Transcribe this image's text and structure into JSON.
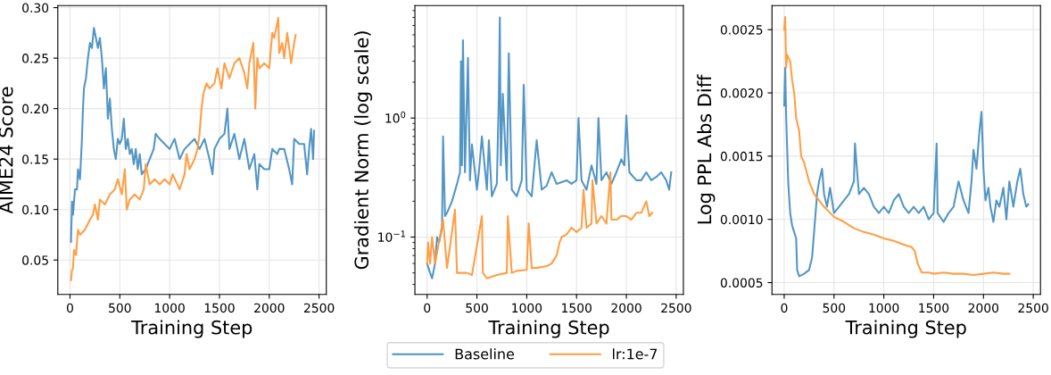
{
  "chart_data": [
    {
      "type": "line",
      "xlabel": "Training Step",
      "ylabel": "AIME24 Score",
      "legend": "bottom",
      "xlim": [
        -122.5,
        2572.5
      ],
      "xticks": [
        0,
        500,
        1000,
        1500,
        2000,
        2500
      ],
      "ylim": [
        0.016,
        0.302
      ],
      "yticks": [
        0.05,
        {
          "value": 0.1,
          "label": "0.10"
        },
        0.15,
        {
          "value": 0.2,
          "label": "0.20"
        },
        0.25,
        {
          "value": 0.3,
          "label": "0.30"
        }
      ],
      "grid": true,
      "series": [
        {
          "name": "Baseline",
          "color": "#4a90c2",
          "x": [
            10,
            20,
            30,
            50,
            70,
            80,
            100,
            120,
            130,
            140,
            160,
            180,
            200,
            220,
            240,
            260,
            280,
            300,
            320,
            340,
            360,
            380,
            400,
            420,
            440,
            460,
            480,
            500,
            520,
            540,
            560,
            580,
            600,
            620,
            640,
            660,
            680,
            700,
            720,
            760,
            800,
            840,
            860,
            900,
            950,
            1000,
            1050,
            1100,
            1150,
            1200,
            1250,
            1300,
            1350,
            1400,
            1430,
            1450,
            1500,
            1550,
            1580,
            1600,
            1650,
            1700,
            1750,
            1800,
            1850,
            1880,
            1900,
            1950,
            2000,
            2030,
            2080,
            2100,
            2150,
            2200,
            2230,
            2250,
            2300,
            2350,
            2380,
            2400,
            2420,
            2440,
            2450
          ],
          "values": [
            0.068,
            0.108,
            0.095,
            0.12,
            0.12,
            0.14,
            0.13,
            0.17,
            0.2,
            0.22,
            0.23,
            0.25,
            0.265,
            0.26,
            0.28,
            0.27,
            0.26,
            0.27,
            0.25,
            0.22,
            0.24,
            0.19,
            0.21,
            0.18,
            0.16,
            0.15,
            0.17,
            0.165,
            0.17,
            0.19,
            0.16,
            0.17,
            0.155,
            0.16,
            0.145,
            0.16,
            0.14,
            0.155,
            0.135,
            0.14,
            0.15,
            0.16,
            0.175,
            0.17,
            0.165,
            0.16,
            0.17,
            0.15,
            0.16,
            0.165,
            0.17,
            0.16,
            0.17,
            0.15,
            0.135,
            0.16,
            0.17,
            0.175,
            0.2,
            0.16,
            0.175,
            0.15,
            0.17,
            0.14,
            0.155,
            0.12,
            0.145,
            0.14,
            0.14,
            0.16,
            0.155,
            0.16,
            0.16,
            0.14,
            0.125,
            0.17,
            0.165,
            0.165,
            0.135,
            0.16,
            0.18,
            0.15,
            0.178
          ]
        },
        {
          "name": "lr:1e-7",
          "color": "#ff9a3c",
          "x": [
            10,
            20,
            30,
            40,
            60,
            80,
            100,
            150,
            200,
            230,
            250,
            280,
            300,
            350,
            400,
            450,
            480,
            520,
            550,
            570,
            600,
            650,
            700,
            740,
            760,
            800,
            850,
            900,
            950,
            1000,
            1030,
            1100,
            1150,
            1170,
            1200,
            1250,
            1280,
            1300,
            1320,
            1340,
            1370,
            1400,
            1450,
            1480,
            1520,
            1550,
            1600,
            1650,
            1700,
            1750,
            1780,
            1800,
            1840,
            1860,
            1880,
            1900,
            1950,
            2000,
            2030,
            2050,
            2090,
            2100,
            2130,
            2150,
            2180,
            2200,
            2220,
            2250,
            2265
          ],
          "values": [
            0.03,
            0.04,
            0.042,
            0.06,
            0.055,
            0.08,
            0.075,
            0.08,
            0.09,
            0.095,
            0.105,
            0.09,
            0.11,
            0.105,
            0.115,
            0.12,
            0.13,
            0.115,
            0.14,
            0.1,
            0.11,
            0.115,
            0.11,
            0.12,
            0.145,
            0.125,
            0.13,
            0.125,
            0.13,
            0.125,
            0.135,
            0.12,
            0.135,
            0.155,
            0.14,
            0.15,
            0.16,
            0.175,
            0.2,
            0.215,
            0.225,
            0.22,
            0.225,
            0.24,
            0.22,
            0.245,
            0.23,
            0.245,
            0.25,
            0.235,
            0.22,
            0.245,
            0.265,
            0.2,
            0.25,
            0.24,
            0.245,
            0.24,
            0.275,
            0.27,
            0.29,
            0.255,
            0.265,
            0.25,
            0.275,
            0.26,
            0.245,
            0.265,
            0.273
          ]
        }
      ]
    },
    {
      "type": "line",
      "xlabel": "Training Step",
      "ylabel": "Gradient Norm (log scale)",
      "log": "y",
      "xlim": [
        -122.5,
        2572.5
      ],
      "xticks": [
        0,
        500,
        1000,
        1500,
        2000,
        2500
      ],
      "ylim": [
        0.033,
        8.8
      ],
      "yticks": [
        {
          "value": 0.1,
          "label": "10$^{−1}$"
        },
        {
          "value": 1,
          "label": "10$^{0}$"
        }
      ],
      "grid": true,
      "legend": "bottom",
      "series": [
        {
          "name": "Baseline",
          "color": "#4a90c2",
          "x": [
            0,
            30,
            50,
            80,
            100,
            120,
            150,
            160,
            180,
            200,
            250,
            300,
            330,
            340,
            350,
            360,
            380,
            410,
            430,
            450,
            500,
            520,
            550,
            600,
            620,
            650,
            700,
            720,
            730,
            740,
            760,
            800,
            820,
            850,
            900,
            950,
            970,
            1000,
            1050,
            1100,
            1150,
            1200,
            1250,
            1300,
            1400,
            1450,
            1500,
            1520,
            1550,
            1600,
            1650,
            1700,
            1720,
            1750,
            1800,
            1850,
            1900,
            1950,
            1980,
            2000,
            2030,
            2100,
            2150,
            2200,
            2250,
            2300,
            2350,
            2400,
            2430,
            2450
          ],
          "values": [
            0.06,
            0.05,
            0.045,
            0.06,
            0.1,
            0.09,
            0.12,
            0.7,
            0.15,
            0.16,
            0.2,
            0.28,
            0.35,
            3.0,
            0.4,
            4.5,
            0.35,
            3.2,
            0.3,
            0.6,
            0.25,
            0.35,
            0.7,
            0.25,
            0.65,
            0.22,
            0.28,
            1.5,
            7.0,
            0.4,
            1.6,
            0.3,
            3.5,
            0.25,
            0.22,
            0.3,
            1.9,
            0.25,
            0.22,
            0.65,
            0.25,
            0.27,
            0.35,
            0.28,
            0.3,
            0.28,
            0.3,
            1.0,
            0.3,
            0.25,
            0.4,
            0.28,
            1.0,
            0.3,
            0.35,
            0.28,
            0.35,
            0.45,
            0.4,
            1.05,
            0.35,
            0.3,
            0.3,
            0.35,
            0.3,
            0.32,
            0.35,
            0.3,
            0.25,
            0.35
          ]
        },
        {
          "name": "lr:1e-7",
          "color": "#ff9a3c",
          "x": [
            0,
            10,
            30,
            50,
            80,
            160,
            200,
            280,
            300,
            400,
            450,
            550,
            560,
            600,
            700,
            800,
            810,
            850,
            900,
            1000,
            1020,
            1050,
            1100,
            1200,
            1250,
            1300,
            1330,
            1350,
            1400,
            1450,
            1500,
            1550,
            1570,
            1600,
            1650,
            1660,
            1700,
            1750,
            1800,
            1840,
            1850,
            1900,
            1950,
            2000,
            2050,
            2100,
            2150,
            2200,
            2230,
            2260
          ],
          "values": [
            0.06,
            0.09,
            0.06,
            0.1,
            0.06,
            0.14,
            0.055,
            0.17,
            0.05,
            0.05,
            0.048,
            0.15,
            0.05,
            0.045,
            0.048,
            0.05,
            0.15,
            0.05,
            0.052,
            0.053,
            0.13,
            0.055,
            0.055,
            0.057,
            0.06,
            0.07,
            0.09,
            0.1,
            0.105,
            0.12,
            0.11,
            0.12,
            0.25,
            0.12,
            0.13,
            0.3,
            0.13,
            0.15,
            0.13,
            0.35,
            0.14,
            0.14,
            0.15,
            0.15,
            0.14,
            0.16,
            0.16,
            0.2,
            0.15,
            0.16
          ]
        }
      ]
    },
    {
      "type": "line",
      "xlabel": "Training Step",
      "ylabel": "Log PPL Abs Diff",
      "legend": "bottom",
      "xlim": [
        -122.5,
        2572.5
      ],
      "xticks": [
        0,
        500,
        1000,
        1500,
        2000,
        2500
      ],
      "ylim": [
        0.000407,
        0.00269
      ],
      "yticks": [
        0.0005,
        {
          "value": 0.001,
          "label": "0.0010"
        },
        0.0015,
        {
          "value": 0.002,
          "label": "0.0020"
        },
        0.0025
      ],
      "grid": true,
      "series": [
        {
          "name": "Baseline",
          "color": "#4a90c2",
          "x": [
            0,
            10,
            20,
            40,
            60,
            80,
            100,
            120,
            130,
            150,
            200,
            250,
            280,
            300,
            330,
            350,
            380,
            400,
            430,
            460,
            500,
            550,
            600,
            650,
            700,
            710,
            750,
            800,
            850,
            900,
            950,
            1000,
            1050,
            1100,
            1150,
            1200,
            1250,
            1300,
            1350,
            1400,
            1450,
            1500,
            1530,
            1540,
            1600,
            1650,
            1700,
            1750,
            1800,
            1850,
            1880,
            1900,
            1930,
            1960,
            1980,
            2000,
            2020,
            2050,
            2070,
            2100,
            2130,
            2160,
            2200,
            2230,
            2260,
            2300,
            2340,
            2370,
            2400,
            2430,
            2450
          ],
          "values": [
            0.0019,
            0.0022,
            0.0018,
            0.0013,
            0.00105,
            0.00095,
            0.0009,
            0.00085,
            0.0006,
            0.00055,
            0.00057,
            0.0006,
            0.0007,
            0.0009,
            0.0012,
            0.0013,
            0.0014,
            0.0012,
            0.0011,
            0.00125,
            0.00105,
            0.0011,
            0.00115,
            0.0012,
            0.0013,
            0.0016,
            0.0012,
            0.00125,
            0.0012,
            0.0011,
            0.00105,
            0.0011,
            0.00105,
            0.00115,
            0.0012,
            0.0011,
            0.00105,
            0.0011,
            0.00105,
            0.0011,
            0.001,
            0.00105,
            0.0016,
            0.00105,
            0.00098,
            0.00105,
            0.0011,
            0.0013,
            0.00115,
            0.00105,
            0.0013,
            0.00155,
            0.0014,
            0.0017,
            0.00185,
            0.0014,
            0.00115,
            0.00125,
            0.0011,
            0.00098,
            0.00115,
            0.0011,
            0.00125,
            0.001,
            0.0013,
            0.0011,
            0.0013,
            0.0014,
            0.0012,
            0.0011,
            0.00112
          ]
        },
        {
          "name": "lr:1e-7",
          "color": "#ff9a3c",
          "x": [
            0,
            10,
            20,
            30,
            60,
            80,
            100,
            120,
            150,
            170,
            200,
            250,
            300,
            350,
            400,
            500,
            600,
            700,
            800,
            900,
            1000,
            1100,
            1200,
            1280,
            1310,
            1340,
            1380,
            1450,
            1500,
            1600,
            1700,
            1800,
            1900,
            2000,
            2100,
            2200,
            2260
          ],
          "values": [
            0.0025,
            0.0026,
            0.0022,
            0.0023,
            0.00225,
            0.0021,
            0.002,
            0.0018,
            0.0017,
            0.0015,
            0.00145,
            0.0013,
            0.0012,
            0.00115,
            0.0011,
            0.00102,
            0.00098,
            0.00093,
            0.0009,
            0.00088,
            0.00085,
            0.00083,
            0.0008,
            0.00078,
            0.00075,
            0.00065,
            0.00058,
            0.00058,
            0.00057,
            0.00058,
            0.00057,
            0.00057,
            0.00056,
            0.00057,
            0.00058,
            0.00057,
            0.00057
          ]
        }
      ]
    }
  ]
}
